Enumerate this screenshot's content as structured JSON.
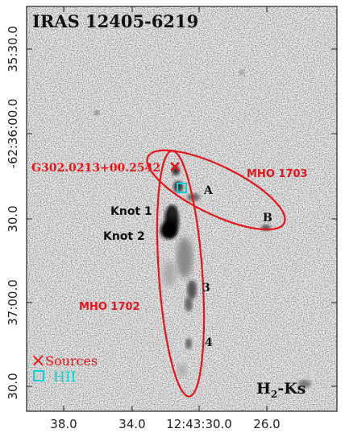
{
  "figure": {
    "title": "IRAS 12405-6219",
    "band_label_main": "H",
    "band_label_sub": "2",
    "band_label_rest": "-Ks",
    "y_ticks": [
      "35:30.0",
      "-62:36:00.0",
      "30.0",
      "37:00.0",
      "30.0"
    ],
    "x_ticks": [
      "38.0",
      "34.0",
      "12:43:30.0",
      "26.0"
    ],
    "source_name": "G302.0213+00.2542",
    "mho_labels": [
      "MHO 1703",
      "MHO 1702"
    ],
    "knot_labels": [
      "A",
      "B",
      "Knot 1",
      "Knot 2",
      "3",
      "4"
    ],
    "legend": {
      "sources_symbol": "×",
      "sources_text": "Sources",
      "hii_text": "HII"
    },
    "colors": {
      "accent_red": "#e8141b",
      "hii_cyan": "#00d4d4",
      "ink": "#111111"
    }
  }
}
